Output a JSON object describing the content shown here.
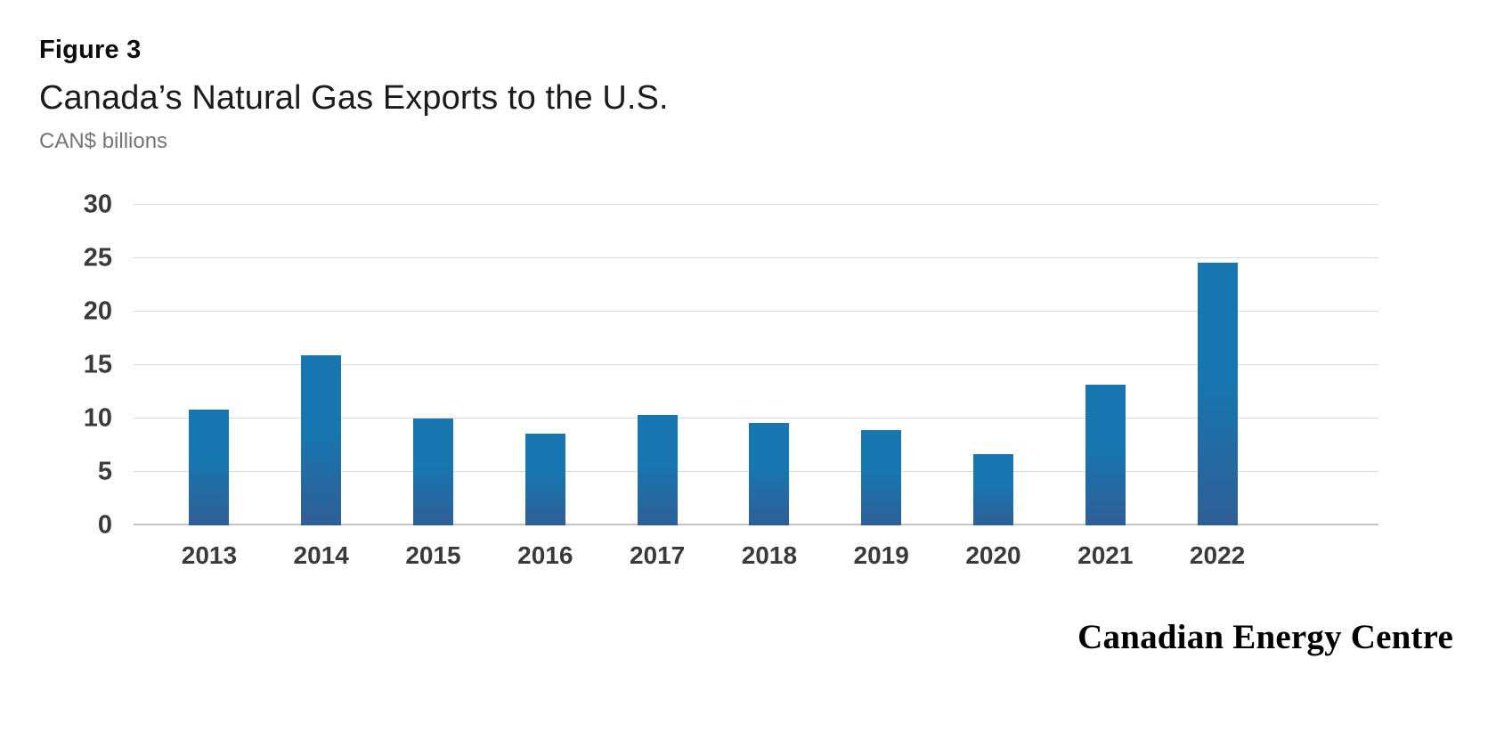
{
  "header": {
    "figure_label": "Figure 3",
    "title": "Canada’s Natural Gas Exports to the U.S.",
    "subtitle": "CAN$ billions"
  },
  "footer": {
    "brand": "Canadian Energy Centre"
  },
  "chart_data": {
    "type": "bar",
    "title": "Canada’s Natural Gas Exports to the U.S.",
    "categories": [
      "2013",
      "2014",
      "2015",
      "2016",
      "2017",
      "2018",
      "2019",
      "2020",
      "2021",
      "2022"
    ],
    "values": [
      10.8,
      15.9,
      10.0,
      8.6,
      10.3,
      9.6,
      8.9,
      6.7,
      13.2,
      24.6
    ],
    "xlabel": "",
    "ylabel": "CAN$ billions",
    "ylim": [
      0,
      30
    ],
    "yticks": [
      0,
      5,
      10,
      15,
      20,
      25,
      30
    ],
    "grid": true,
    "legend": false,
    "colors": {
      "bar_top": "#1876b0",
      "bar_bottom": "#2f5e96",
      "grid": "#d9d9d9",
      "baseline": "#c4c4c4",
      "tick_label": "#3a3a3a",
      "subtitle": "#757575"
    }
  }
}
